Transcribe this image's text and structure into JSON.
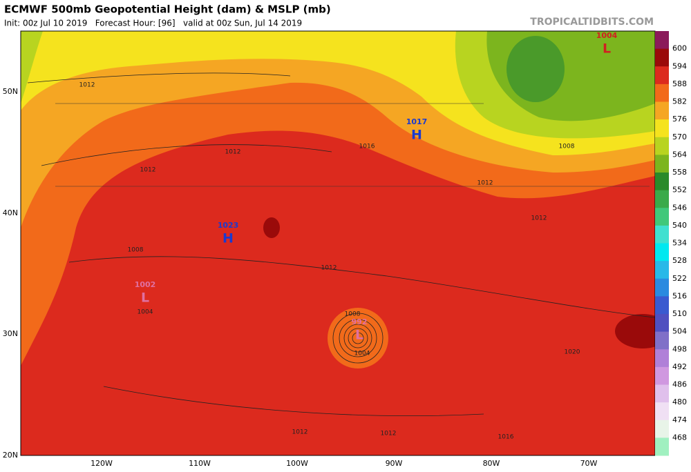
{
  "header": {
    "title": "ECMWF 500mb Geopotential Height (dam) & MSLP (mb)",
    "subtitle": "Init: 00z Jul 10 2019   Forecast Hour: [96]   valid at 00z Sun, Jul 14 2019",
    "source": "TROPICALTIDBITS.COM"
  },
  "colorbar": {
    "labels": [
      600,
      594,
      588,
      582,
      576,
      570,
      564,
      558,
      552,
      546,
      540,
      534,
      528,
      522,
      516,
      510,
      504,
      498,
      492,
      486,
      480,
      474,
      468
    ],
    "colors": [
      "#8b1a5a",
      "#9a0a0a",
      "#dc2a1e",
      "#f26a1a",
      "#f5a623",
      "#f5e31e",
      "#b8d420",
      "#7cb51e",
      "#2a8a2a",
      "#3aaa4a",
      "#40c87a",
      "#40e0d0",
      "#00e8f0",
      "#28b8e8",
      "#2a8ae0",
      "#3a5ad0",
      "#5050c0",
      "#8070c8",
      "#b080d8",
      "#d098e0",
      "#e0c0ec",
      "#f0e0f4",
      "#e8f4e8",
      "#a0f0c0"
    ]
  },
  "axes": {
    "lat": [
      "50N",
      "40N",
      "30N",
      "20N"
    ],
    "lon": [
      "120W",
      "110W",
      "100W",
      "90W",
      "80W",
      "70W"
    ]
  },
  "centers": [
    {
      "value": "1004",
      "symbol": "L"
    },
    {
      "value": "1017",
      "symbol": "H"
    },
    {
      "value": "1023",
      "symbol": "H"
    },
    {
      "value": "1002",
      "symbol": "L"
    },
    {
      "value": "992",
      "symbol": "L"
    }
  ],
  "isobar_labels": [
    "1012",
    "1012",
    "1012",
    "1016",
    "1012",
    "1008",
    "1012",
    "1008",
    "1012",
    "1004",
    "1008",
    "1004",
    "1020",
    "1012",
    "1012",
    "1016"
  ]
}
